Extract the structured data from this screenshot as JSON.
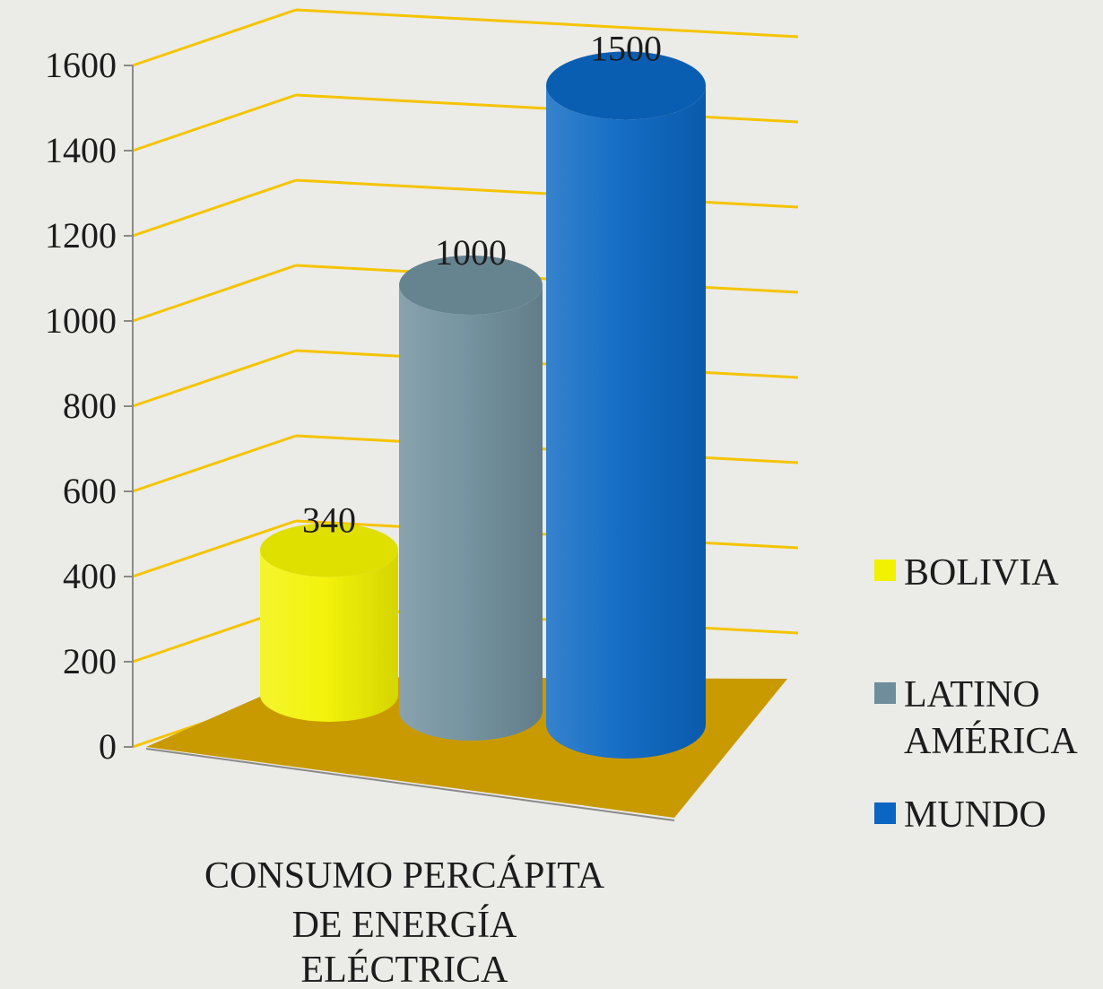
{
  "chart_data": {
    "type": "bar",
    "categories": [
      "CONSUMO PERCÁPITA DE ENERGÍA ELÉCTRICA"
    ],
    "category_lines": [
      "CONSUMO PERCÁPITA",
      "DE ENERGÍA",
      "ELÉCTRICA"
    ],
    "series": [
      {
        "name": "BOLIVIA",
        "values": [
          340
        ],
        "color": "#f2f200"
      },
      {
        "name": "LATINO AMÉRICA",
        "name_lines": [
          "LATINO",
          "AMÉRICA"
        ],
        "values": [
          1000
        ],
        "color": "#6f8e9c"
      },
      {
        "name": "MUNDO",
        "values": [
          1500
        ],
        "color": "#0a66c2"
      }
    ],
    "ylim": [
      0,
      1600
    ],
    "yticks": [
      0,
      200,
      400,
      600,
      800,
      1000,
      1200,
      1400,
      1600
    ],
    "data_labels": [
      "340",
      "1000",
      "1500"
    ],
    "grid": true,
    "grid_color": "#f5c400",
    "floor_color": "#c99a00",
    "legend": "right",
    "style": "3d-cylinder",
    "title": "",
    "xlabel": "",
    "ylabel": ""
  }
}
